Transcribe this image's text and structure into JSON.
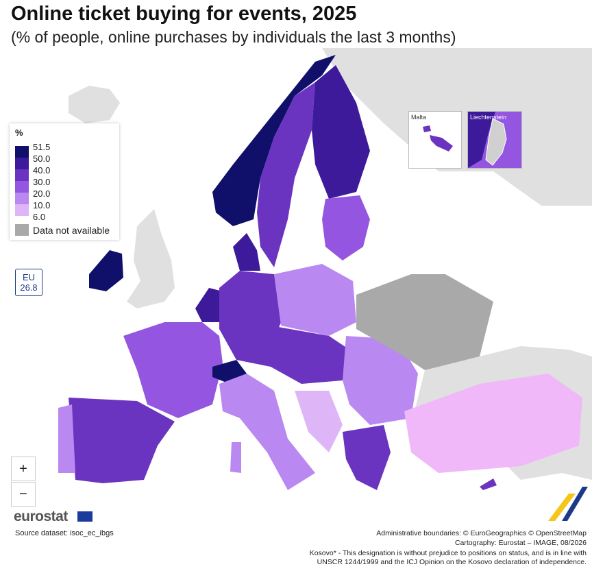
{
  "title": "Online ticket buying for events, 2025",
  "subtitle": "(% of people, online purchases by individuals the last 3 months)",
  "legend": {
    "unit": "%",
    "thresholds": [
      "51.5",
      "50.0",
      "40.0",
      "30.0",
      "20.0",
      "10.0",
      "6.0"
    ],
    "colors": [
      "#10106b",
      "#3d1a9a",
      "#6a34c0",
      "#9456e0",
      "#b988f0",
      "#deb6f8"
    ],
    "not_available_label": "Data not available",
    "not_available_color": "#a9a9a9"
  },
  "eu_badge": {
    "line1": "EU",
    "line2": "26.8"
  },
  "zoom": {
    "in_label": "+",
    "out_label": "−"
  },
  "insets": {
    "malta": "Malta",
    "liechtenstein": "Liechtenstein"
  },
  "footer": {
    "logo_text": "eurostat",
    "source": "Source dataset: isoc_ec_ibgs",
    "boundaries": "Administrative boundaries: © EuroGeographics © OpenStreetMap",
    "cartography": "Cartography: Eurostat – IMAGE, 08/2026",
    "kosovo_line1": "Kosovo* - This designation is without prejudice to positions on status, and is in line with",
    "kosovo_line2": "UNSCR 1244/1999 and the ICJ Opinion on the Kosovo declaration of independence."
  },
  "colors": {
    "sea": "#ffffff",
    "non_eu_land": "#e0e0e0",
    "border": "#ffffff"
  }
}
